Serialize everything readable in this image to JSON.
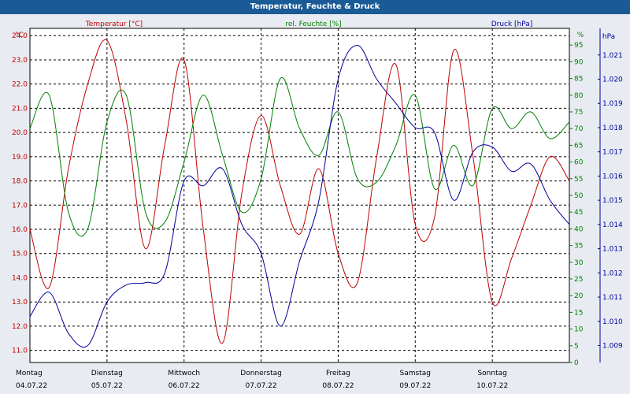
{
  "title": "Temperatur, Feuchte & Druck",
  "colors": {
    "temp": "#c00000",
    "hum": "#008000",
    "press": "#000099",
    "grid": "#000000",
    "bg": "#ffffff",
    "titlebar": "#1a5a96"
  },
  "chart_data": {
    "type": "line",
    "title": "Temperatur, Feuchte & Druck",
    "x": [
      0,
      0.25,
      0.5,
      0.75,
      1,
      1.25,
      1.5,
      1.75,
      2,
      2.25,
      2.5,
      2.75,
      3,
      3.25,
      3.5,
      3.75,
      4,
      4.25,
      4.5,
      4.75,
      5,
      5.25,
      5.5,
      5.75,
      6,
      6.25,
      6.5,
      6.75,
      7
    ],
    "x_ticks": [
      {
        "day": "Montag",
        "date": "04.07.22"
      },
      {
        "day": "Dienstag",
        "date": "05.07.22"
      },
      {
        "day": "Mittwoch",
        "date": "06.07.22"
      },
      {
        "day": "Donnerstag",
        "date": "07.07.22"
      },
      {
        "day": "Freitag",
        "date": "08.07.22"
      },
      {
        "day": "Samstag",
        "date": "09.07.22"
      },
      {
        "day": "Sonntag",
        "date": "10.07.22"
      }
    ],
    "axes": {
      "temp": {
        "label": "Temperatur [°C]",
        "unit": "°C",
        "min": 10.5,
        "max": 24.3,
        "ticks": [
          "11.0",
          "12.0",
          "13.0",
          "14.0",
          "15.0",
          "16.0",
          "17.0",
          "18.0",
          "19.0",
          "20.0",
          "21.0",
          "22.0",
          "23.0",
          "24.0"
        ]
      },
      "hum": {
        "label": "rel. Feuchte [%]",
        "unit": "%",
        "min": 0,
        "max": 100,
        "ticks": [
          "0",
          "5",
          "10",
          "15",
          "20",
          "25",
          "30",
          "35",
          "40",
          "45",
          "50",
          "55",
          "60",
          "65",
          "70",
          "75",
          "80",
          "85",
          "90",
          "95"
        ]
      },
      "press": {
        "label": "Druck [hPa]",
        "unit": "hPa",
        "min": 1008.3,
        "max": 1022.1,
        "ticks": [
          "1.009",
          "1.010",
          "1.011",
          "1.012",
          "1.013",
          "1.014",
          "1.015",
          "1.016",
          "1.017",
          "1.018",
          "1.019",
          "1.020",
          "1.021"
        ]
      }
    },
    "series": [
      {
        "name": "Temperatur",
        "axis": "temp",
        "values": [
          16.0,
          13.6,
          18.5,
          22.0,
          23.8,
          20.5,
          15.2,
          19.5,
          23.0,
          16.0,
          11.3,
          17.5,
          20.7,
          17.8,
          15.8,
          18.5,
          15.0,
          13.8,
          19.0,
          22.8,
          16.2,
          16.5,
          23.4,
          19.0,
          13.0,
          14.8,
          17.0,
          19.0,
          18.0
        ]
      },
      {
        "name": "rel. Feuchte",
        "axis": "hum",
        "values": [
          70,
          80,
          45,
          40,
          72,
          80,
          45,
          42,
          60,
          80,
          62,
          45,
          55,
          85,
          70,
          62,
          75,
          55,
          54,
          65,
          80,
          52,
          65,
          53,
          76,
          70,
          75,
          67,
          72
        ]
      },
      {
        "name": "Druck",
        "axis": "press",
        "values": [
          1010.2,
          1011.2,
          1009.5,
          1009.0,
          1010.8,
          1011.5,
          1011.6,
          1012.0,
          1015.8,
          1015.6,
          1016.3,
          1014.0,
          1012.8,
          1009.8,
          1012.5,
          1015.0,
          1020.0,
          1021.4,
          1020.0,
          1019.0,
          1018.0,
          1017.8,
          1015.0,
          1017.0,
          1017.2,
          1016.2,
          1016.5,
          1015.0,
          1014.0
        ]
      }
    ]
  }
}
